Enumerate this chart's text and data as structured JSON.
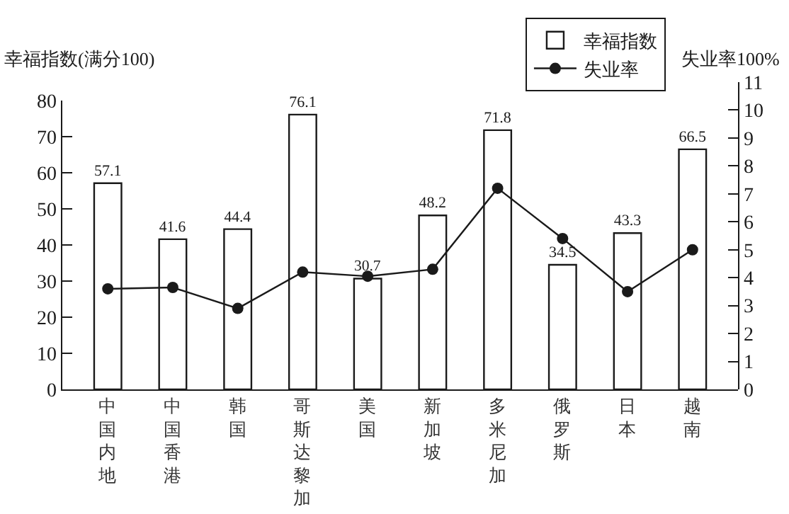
{
  "chart_data": {
    "type": "bar",
    "ylabel": "幸福指数(满分100)",
    "y2label": "失业率100%",
    "categories": [
      "中国内地",
      "中国香港",
      "韩国",
      "哥斯达黎加",
      "美国",
      "新加坡",
      "多米尼加",
      "俄罗斯",
      "日本",
      "越南"
    ],
    "series": [
      {
        "name": "幸福指数",
        "color": "#ffffff",
        "values": [
          57.1,
          41.6,
          44.4,
          76.1,
          30.7,
          48.2,
          71.8,
          34.5,
          43.3,
          66.5
        ],
        "value_labels": [
          "57.1",
          "41.6",
          "44.4",
          "76.1",
          "30.7",
          "48.2",
          "71.8",
          "34.5",
          "43.3",
          "66.5"
        ]
      },
      {
        "name": "失业率",
        "type": "line",
        "axis": "y2",
        "color": "#1a1a1a",
        "values": [
          3.6,
          3.65,
          2.9,
          4.2,
          4.05,
          4.3,
          7.2,
          5.4,
          3.5,
          5.0
        ]
      }
    ],
    "marker": "circle",
    "line_style": "solid",
    "grid": false,
    "legend": "top right",
    "ylim": [
      0,
      80
    ],
    "yticks": [
      0,
      10,
      20,
      30,
      40,
      50,
      60,
      70,
      80
    ],
    "y2lim": [
      0,
      11
    ],
    "y2ticks": [
      0,
      1,
      2,
      3,
      4,
      5,
      6,
      7,
      8,
      9,
      10,
      11
    ]
  }
}
